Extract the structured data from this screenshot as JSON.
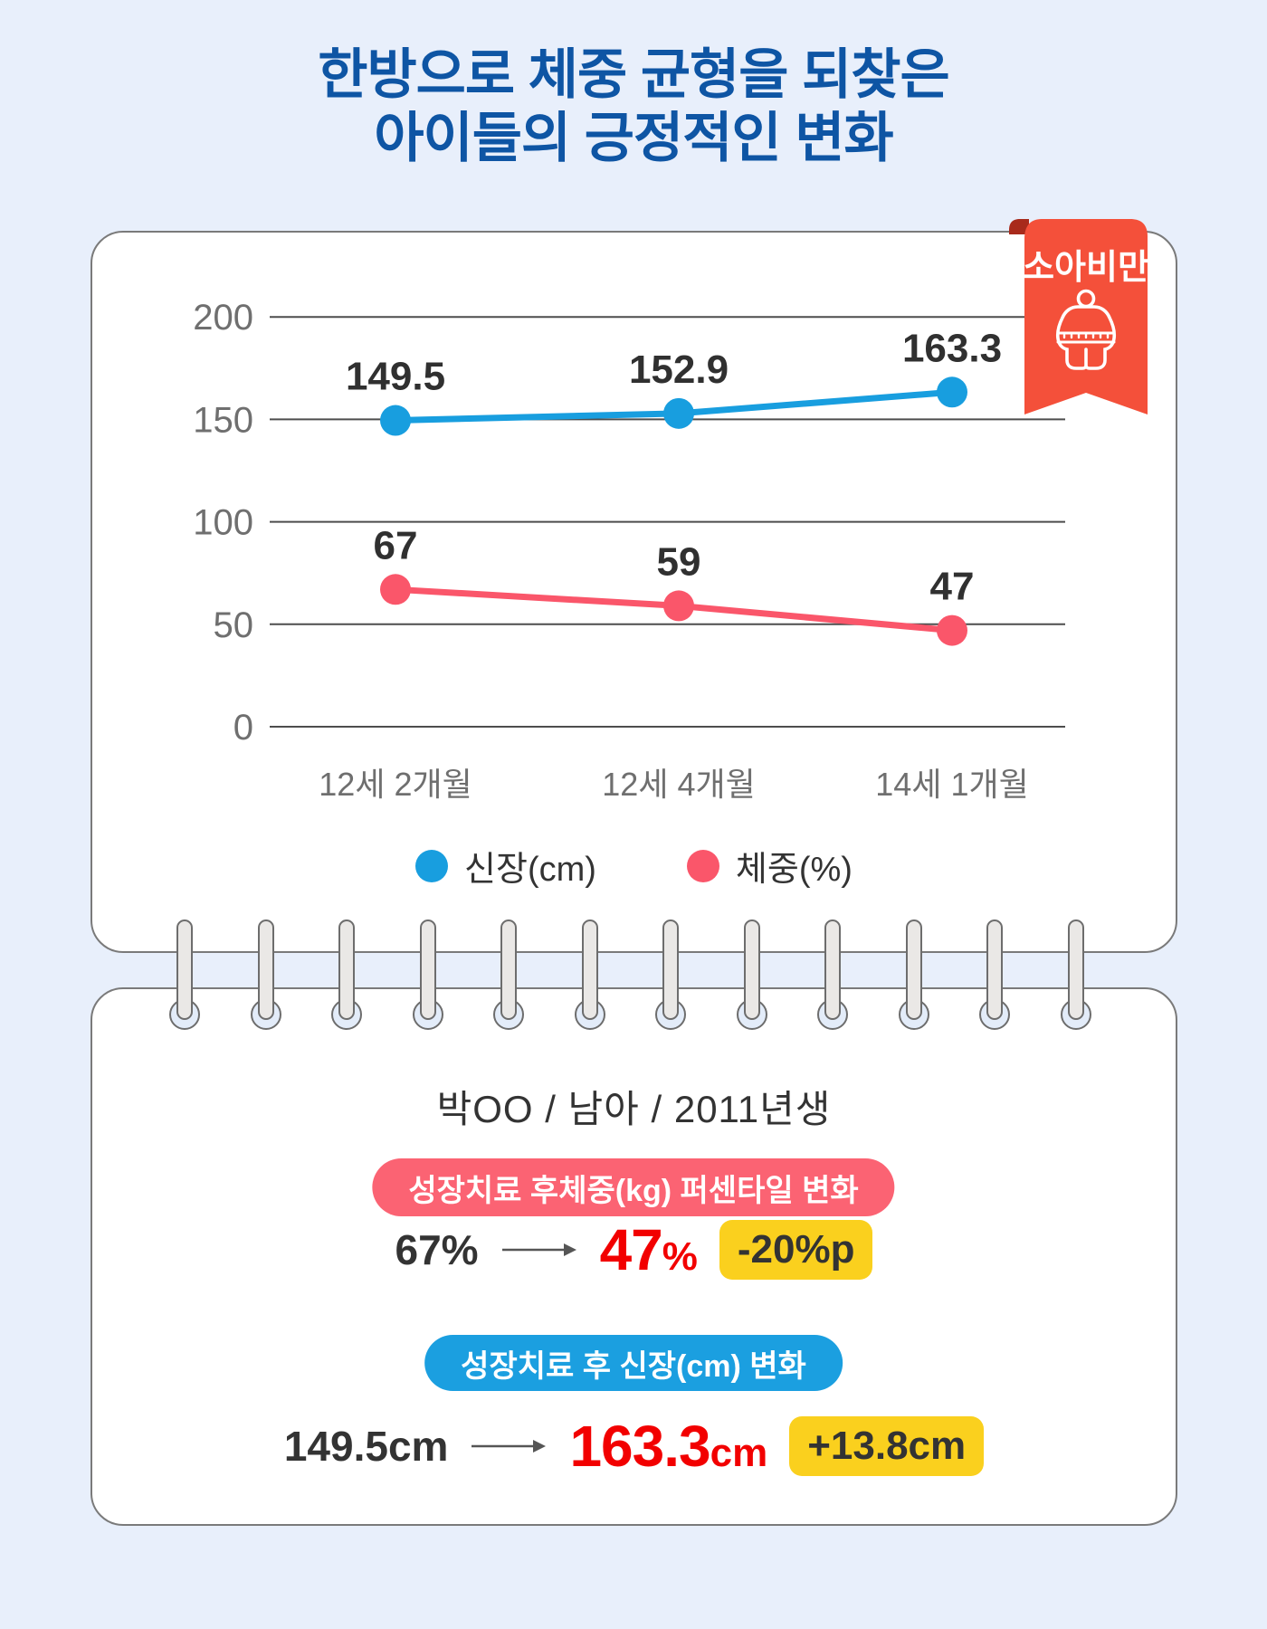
{
  "title": {
    "line1": "한방으로 체중 균형을 되찾은",
    "line2": "아이들의 긍정적인 변화",
    "color": "#0e55a4"
  },
  "ribbon": {
    "label": "소아비만",
    "background": "#f4503a",
    "fold_color": "#a82a1b",
    "text_color": "#ffffff",
    "icon": "obese-child-measuring-tape-icon"
  },
  "chart_data": {
    "type": "line",
    "categories": [
      "12세 2개월",
      "12세 4개월",
      "14세 1개월"
    ],
    "series": [
      {
        "name": "신장(cm)",
        "color": "#189edf",
        "values": [
          149.5,
          152.9,
          163.3
        ]
      },
      {
        "name": "체중(%)",
        "color": "#fa566a",
        "values": [
          67,
          59,
          47
        ]
      }
    ],
    "ylim": [
      0,
      200
    ],
    "yticks": [
      0,
      50,
      100,
      150,
      200
    ],
    "grid": true,
    "value_labels": true,
    "legend_position": "bottom"
  },
  "record": {
    "patient_info": "박OO / 남아 / 2011년생",
    "weight_section": {
      "badge_label": "성장치료 후체중(kg) 퍼센타일 변화",
      "badge_bg": "#fb6373",
      "before": "67%",
      "after_value": "47",
      "after_unit": "%",
      "delta": "-20%p"
    },
    "height_section": {
      "badge_label": "성장치료 후 신장(cm) 변화",
      "badge_bg": "#1b9fe0",
      "before": "149.5cm",
      "after_value": "163.3",
      "after_unit": "cm",
      "delta": "+13.8cm"
    }
  },
  "colors": {
    "background": "#e8effb",
    "card_border": "#7a7a7a",
    "grid_line": "#4d4d4d",
    "axis_label": "#6f6f6f",
    "value_label": "#303030",
    "red_highlight": "#f20000",
    "delta_badge_bg": "#fad01e",
    "arrow": "#555555"
  }
}
